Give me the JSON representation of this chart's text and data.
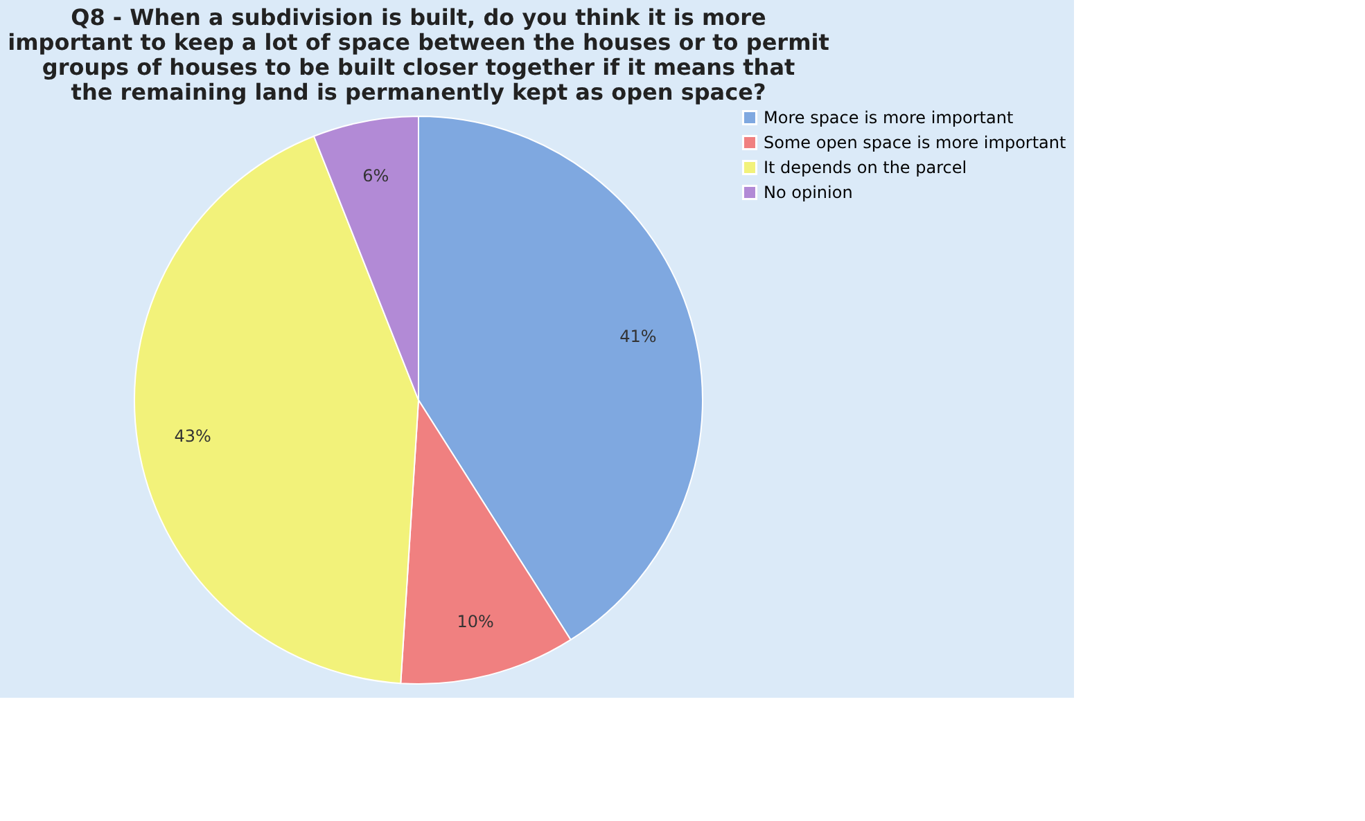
{
  "chart_data": {
    "type": "pie",
    "title": "Q8 - When a subdivision is built, do you think it is more important to keep a lot of space between the houses or to permit groups of houses to be built closer together if it means that the remaining land is permanently kept as open space?",
    "categories": [
      "More space is more important",
      "Some open space is more important",
      "It depends on the parcel",
      "No opinion"
    ],
    "values": [
      41,
      10,
      43,
      6
    ],
    "colors": [
      "#7fa8e0",
      "#f08080",
      "#f2f27a",
      "#b28ad6"
    ],
    "value_labels": [
      "41%",
      "10%",
      "43%",
      "6%"
    ],
    "legend": "right"
  }
}
